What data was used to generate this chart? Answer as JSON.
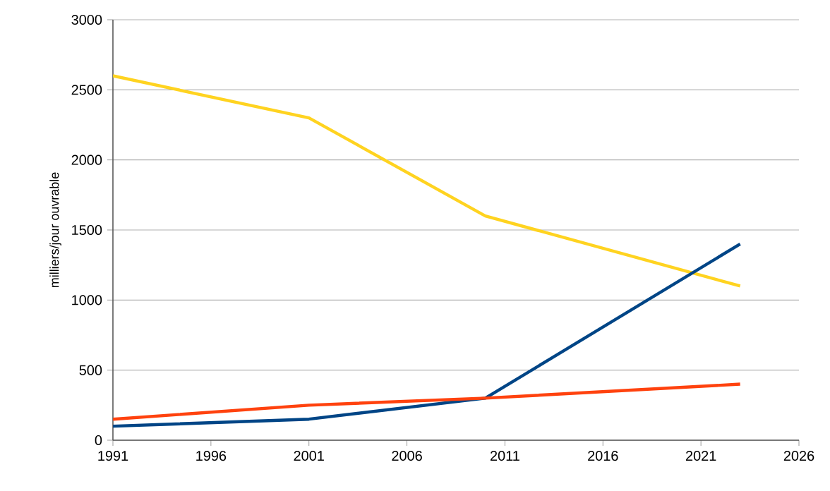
{
  "chart_data": {
    "type": "line",
    "ylabel": "milliers/jour ouvrable",
    "xlim": [
      1991,
      2026
    ],
    "xticks": [
      1991,
      1996,
      2001,
      2006,
      2011,
      2016,
      2021,
      2026
    ],
    "ylim": [
      0,
      3000
    ],
    "yticks": [
      0,
      500,
      1000,
      1500,
      2000,
      2500,
      3000
    ],
    "grid": "y",
    "marker": "none",
    "line_style": "solid",
    "series": [
      {
        "color": "#ffd320",
        "x": [
          1991,
          2001,
          2010,
          2023
        ],
        "values": [
          2600,
          2300,
          1600,
          1100
        ]
      },
      {
        "color": "#004586",
        "x": [
          1991,
          2001,
          2010,
          2023
        ],
        "values": [
          100,
          150,
          300,
          1400
        ]
      },
      {
        "color": "#ff420e",
        "x": [
          1991,
          2001,
          2010,
          2023
        ],
        "values": [
          150,
          250,
          300,
          400
        ]
      }
    ]
  }
}
